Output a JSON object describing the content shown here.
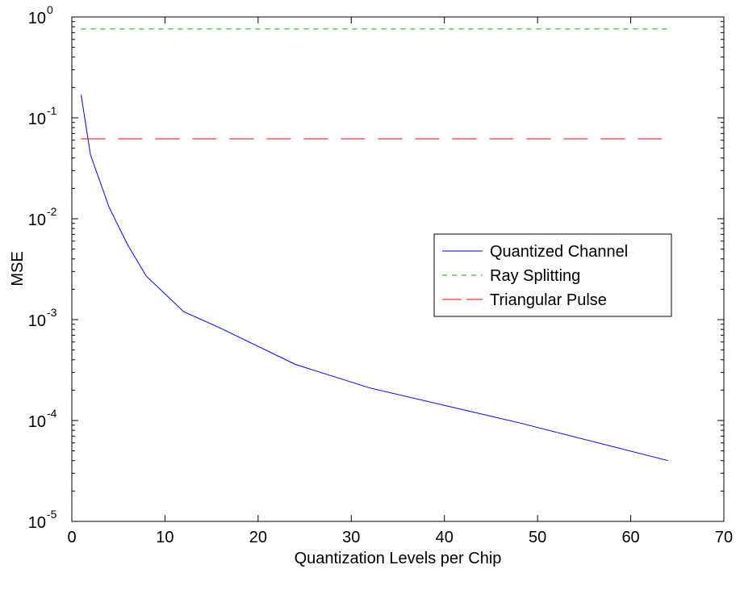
{
  "chart_data": {
    "type": "line",
    "title": "",
    "xlabel": "Quantization Levels per Chip",
    "ylabel": "MSE",
    "xlim": [
      0,
      70
    ],
    "ylim": [
      1e-05,
      1
    ],
    "yscale": "log",
    "grid": false,
    "legend_position": "center-right",
    "xticks": [
      "0",
      "10",
      "20",
      "30",
      "40",
      "50",
      "60",
      "70"
    ],
    "yticks": [
      {
        "base": "10",
        "exp": "-5",
        "value": 1e-05
      },
      {
        "base": "10",
        "exp": "-4",
        "value": 0.0001
      },
      {
        "base": "10",
        "exp": "-3",
        "value": 0.001
      },
      {
        "base": "10",
        "exp": "-2",
        "value": 0.01
      },
      {
        "base": "10",
        "exp": "-1",
        "value": 0.1
      },
      {
        "base": "10",
        "exp": "0",
        "value": 1
      }
    ],
    "series": [
      {
        "name": "Quantized Channel",
        "color": "#0000ff",
        "style": "solid",
        "x": [
          1,
          2,
          4,
          6,
          8,
          12,
          16,
          24,
          32,
          48,
          64
        ],
        "y": [
          0.17,
          0.043,
          0.013,
          0.0055,
          0.0027,
          0.0012,
          0.00082,
          0.00036,
          0.00021,
          9.5e-05,
          4e-05
        ]
      },
      {
        "name": "Ray Splitting",
        "color": "#00aa00",
        "style": "dashed",
        "x": [
          1,
          64
        ],
        "y": [
          0.76,
          0.76
        ]
      },
      {
        "name": "Triangular Pulse",
        "color": "#ff0000",
        "style": "longdash",
        "x": [
          1,
          64
        ],
        "y": [
          0.062,
          0.062
        ]
      }
    ]
  }
}
